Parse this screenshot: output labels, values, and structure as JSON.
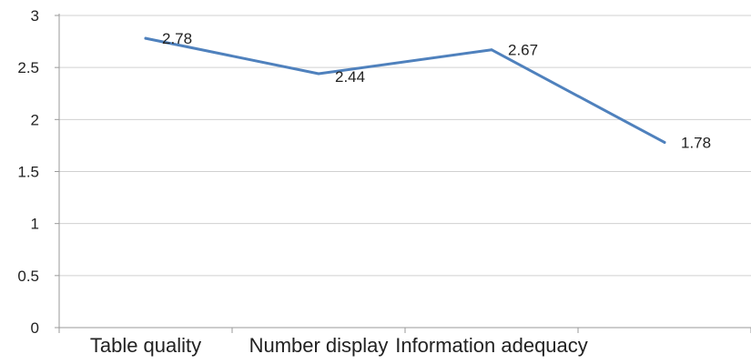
{
  "chart_data": {
    "type": "line",
    "categories": [
      "Table quality",
      "Number display",
      "Information adequacy",
      ""
    ],
    "series": [
      {
        "values": [
          2.78,
          2.44,
          2.67,
          1.78
        ],
        "data_labels": [
          "2.78",
          "2.44",
          "2.67",
          "1.78"
        ]
      }
    ],
    "title": "",
    "xlabel": "",
    "ylabel": "",
    "ylim": [
      0,
      3
    ],
    "yticks": [
      0,
      0.5,
      1,
      1.5,
      2,
      2.5,
      3
    ],
    "ytick_labels": [
      "0",
      "0.5",
      "1",
      "1.5",
      "2",
      "2.5",
      "3"
    ],
    "grid": true,
    "legend": "none",
    "colors": {
      "line": "#4f81bd",
      "grid": "#d0d0d0",
      "axis": "#9a9a9a"
    }
  }
}
